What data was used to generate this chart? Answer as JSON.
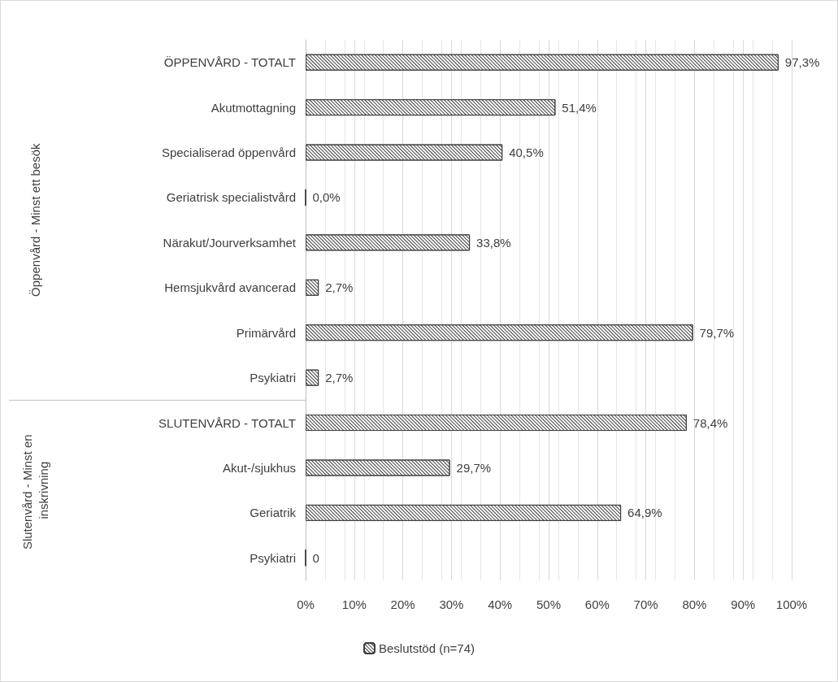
{
  "chart_data": {
    "type": "bar",
    "orientation": "horizontal",
    "categories": [
      "ÖPPENVÅRD - TOTALT",
      "Akutmottagning",
      "Specialiserad öppenvård",
      "Geriatrisk specialistvård",
      "Närakut/Jourverksamhet",
      "Hemsjukvård avancerad",
      "Primärvård",
      "Psykiatri",
      "SLUTENVÅRD - TOTALT",
      "Akut-/sjukhus",
      "Geriatrik",
      "Psykiatri"
    ],
    "series": [
      {
        "name": "Beslutstöd (n=74)",
        "color": "#404040",
        "values": [
          97.3,
          51.4,
          40.5,
          0,
          33.8,
          2.7,
          79.7,
          2.7,
          78.4,
          29.7,
          64.9,
          0
        ],
        "value_labels": [
          "97,3%",
          "51,4%",
          "40,5%",
          "0,0%",
          "33,8%",
          "2,7%",
          "79,7%",
          "2,7%",
          "78,4%",
          "29,7%",
          "64,9%",
          "0"
        ]
      }
    ],
    "xlim": [
      0,
      100
    ],
    "xticks": [
      {
        "value": 0,
        "label": "0%"
      },
      {
        "value": 10,
        "label": "10%"
      },
      {
        "value": 20,
        "label": "20%"
      },
      {
        "value": 30,
        "label": "30%"
      },
      {
        "value": 40,
        "label": "40%"
      },
      {
        "value": 50,
        "label": "50%"
      },
      {
        "value": 60,
        "label": "60%"
      },
      {
        "value": 70,
        "label": "70%"
      },
      {
        "value": 80,
        "label": "80%"
      },
      {
        "value": 90,
        "label": "90%"
      },
      {
        "value": 100,
        "label": "100%"
      }
    ],
    "annotations": [
      "Öppenvård - Minst ett besök",
      "Slutenvård - Minst en inskrivning"
    ],
    "grid": "x",
    "legend": "bottom"
  }
}
